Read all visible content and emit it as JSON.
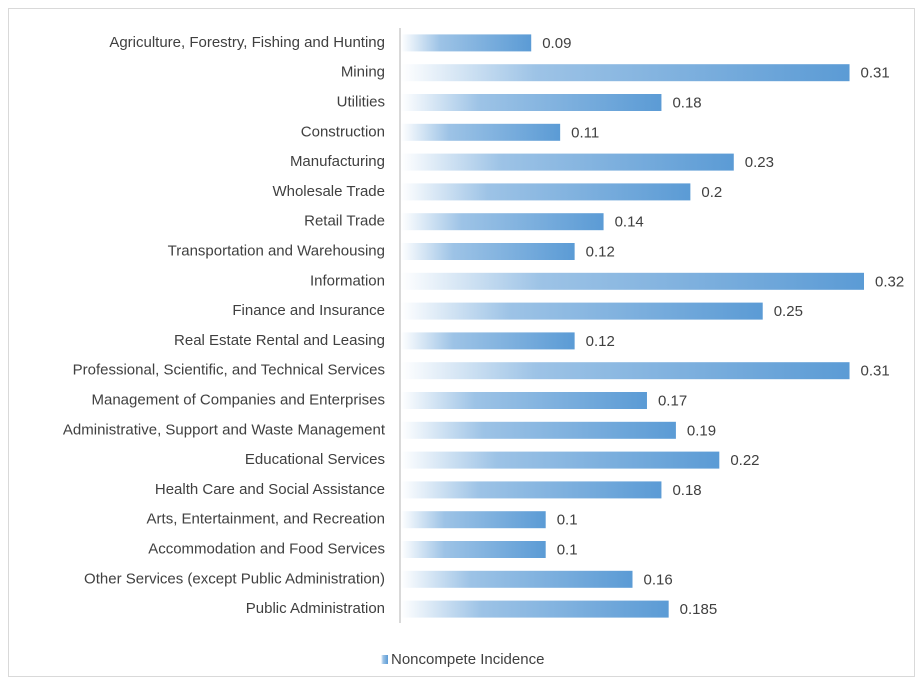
{
  "chart_data": {
    "type": "bar",
    "orientation": "horizontal",
    "categories": [
      "Agriculture, Forestry, Fishing and Hunting",
      "Mining",
      "Utilities",
      "Construction",
      "Manufacturing",
      "Wholesale Trade",
      "Retail Trade",
      "Transportation and Warehousing",
      "Information",
      "Finance and Insurance",
      "Real Estate Rental and Leasing",
      "Professional, Scientific, and Technical Services",
      "Management of Companies and Enterprises",
      "Administrative, Support and Waste Management",
      "Educational Services",
      "Health Care and Social Assistance",
      "Arts, Entertainment, and Recreation",
      "Accommodation and Food Services",
      "Other Services (except Public Administration)",
      "Public Administration"
    ],
    "series": [
      {
        "name": "Noncompete Incidence",
        "color": "#5b9bd5",
        "values": [
          0.09,
          0.31,
          0.18,
          0.11,
          0.23,
          0.2,
          0.14,
          0.12,
          0.32,
          0.25,
          0.12,
          0.31,
          0.17,
          0.19,
          0.22,
          0.18,
          0.1,
          0.1,
          0.16,
          0.185
        ]
      }
    ],
    "legend": "bottom"
  }
}
